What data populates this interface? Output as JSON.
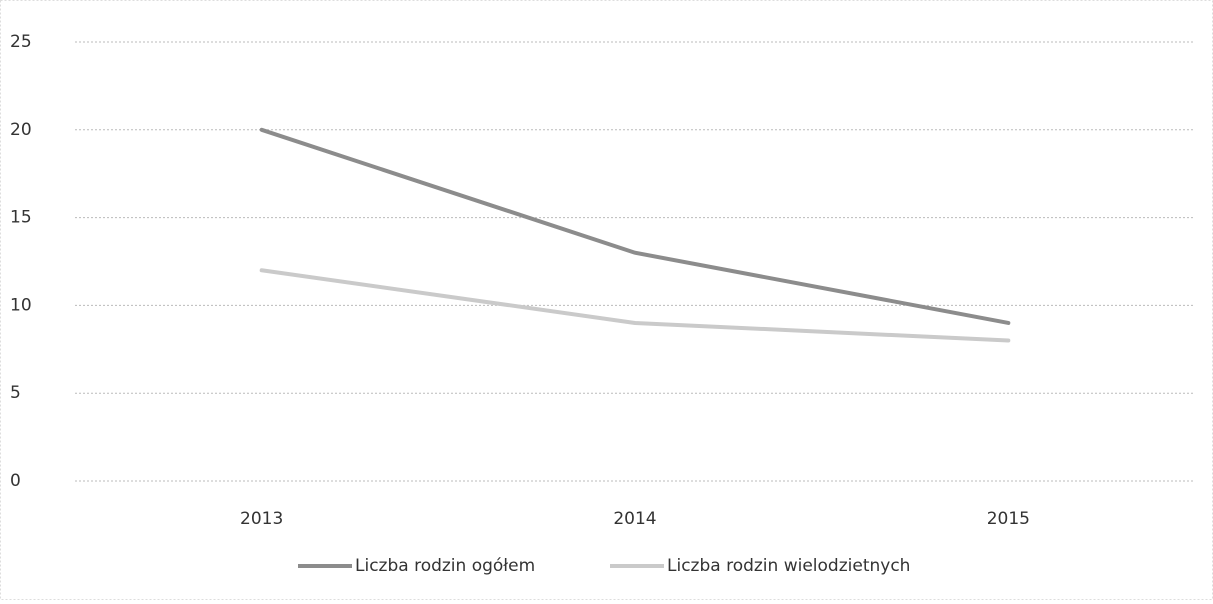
{
  "chart_data": {
    "type": "line",
    "categories": [
      "2013",
      "2014",
      "2015"
    ],
    "series": [
      {
        "name": "Liczba rodzin ogółem",
        "color": "#8c8c8c",
        "values": [
          20,
          13,
          9
        ]
      },
      {
        "name": "Liczba rodzin wielodzietnych",
        "color": "#cacaca",
        "values": [
          12,
          9,
          8
        ]
      }
    ],
    "ylim": [
      0,
      25
    ],
    "yticks": [
      0,
      5,
      10,
      15,
      20,
      25
    ],
    "grid": true,
    "legend": "bottom"
  }
}
